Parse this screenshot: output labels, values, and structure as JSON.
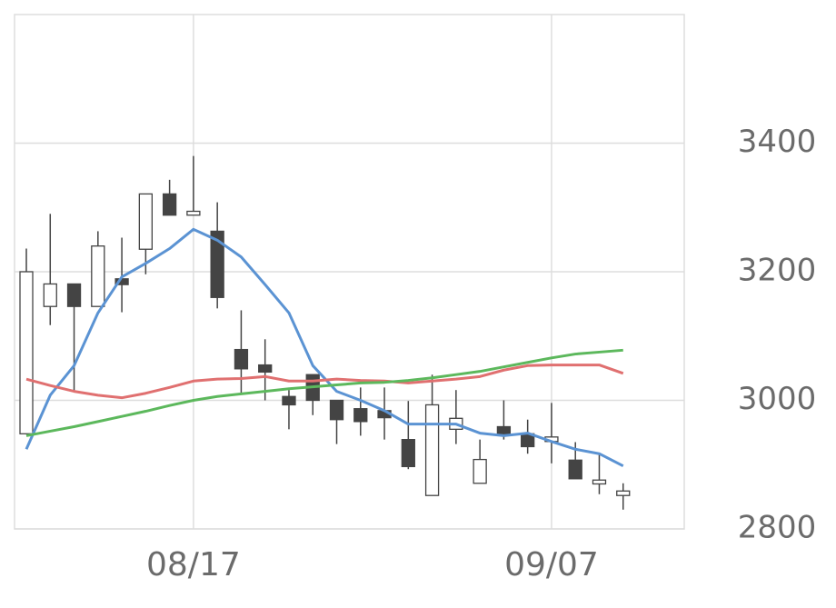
{
  "chart_data": {
    "type": "candlestick",
    "categories": [
      null,
      null,
      null,
      null,
      null,
      null,
      null,
      "08/17",
      null,
      null,
      null,
      null,
      null,
      null,
      null,
      null,
      null,
      null,
      null,
      null,
      null,
      null,
      "09/07",
      null,
      null,
      null
    ],
    "open": [
      2948,
      3146,
      3181,
      3146,
      3189,
      3235,
      3321,
      3288,
      3263,
      3079,
      3055,
      3006,
      3040,
      3000,
      2987,
      2984,
      2939,
      2852,
      2955,
      2871,
      2959,
      2948,
      2936,
      2907,
      2870,
      2852
    ],
    "high": [
      3236,
      3290,
      3181,
      3263,
      3253,
      3321,
      3343,
      3380,
      3308,
      3140,
      3095,
      3016,
      3040,
      3000,
      3020,
      3020,
      2999,
      3040,
      3016,
      2939,
      3000,
      2970,
      2996,
      2935,
      2917,
      2871
    ],
    "low": [
      2948,
      3117,
      3013,
      3146,
      3137,
      3196,
      3288,
      3288,
      3143,
      3011,
      3000,
      2955,
      2977,
      2932,
      2945,
      2939,
      2893,
      2852,
      2932,
      2871,
      2939,
      2917,
      2902,
      2878,
      2854,
      2830
    ],
    "close": [
      3200,
      3181,
      3146,
      3240,
      3180,
      3321,
      3288,
      3294,
      3160,
      3049,
      3044,
      2993,
      3000,
      2970,
      2967,
      2973,
      2897,
      2993,
      2972,
      2908,
      2948,
      2928,
      2943,
      2878,
      2876,
      2859
    ],
    "up_color": "#ffffff",
    "down_color": "#444444",
    "wick_color": "#444444",
    "overlays": [
      {
        "color": "#5b93d3",
        "values": [
          2924,
          3008,
          3054,
          3136,
          3192,
          3213,
          3236,
          3266,
          3249,
          3223,
          3180,
          3136,
          3054,
          3014,
          3000,
          2984,
          2963,
          2963,
          2963,
          2949,
          2945,
          2949,
          2936,
          2924,
          2917,
          2898
        ]
      },
      {
        "color": "#e07070",
        "values": [
          3033,
          3023,
          3014,
          3008,
          3004,
          3011,
          3020,
          3030,
          3033,
          3034,
          3037,
          3030,
          3030,
          3033,
          3031,
          3030,
          3027,
          3030,
          3033,
          3037,
          3047,
          3054,
          3055,
          3055,
          3055,
          3042
        ]
      },
      {
        "color": "#5cb85c",
        "values": [
          2945,
          2952,
          2959,
          2967,
          2975,
          2983,
          2992,
          3000,
          3006,
          3010,
          3014,
          3018,
          3021,
          3024,
          3027,
          3028,
          3031,
          3035,
          3040,
          3045,
          3052,
          3059,
          3066,
          3072,
          3075,
          3078
        ]
      }
    ],
    "ylim": [
      2800,
      3600
    ],
    "yticks": [
      2800,
      3000,
      3200,
      3400
    ],
    "grid": true
  }
}
